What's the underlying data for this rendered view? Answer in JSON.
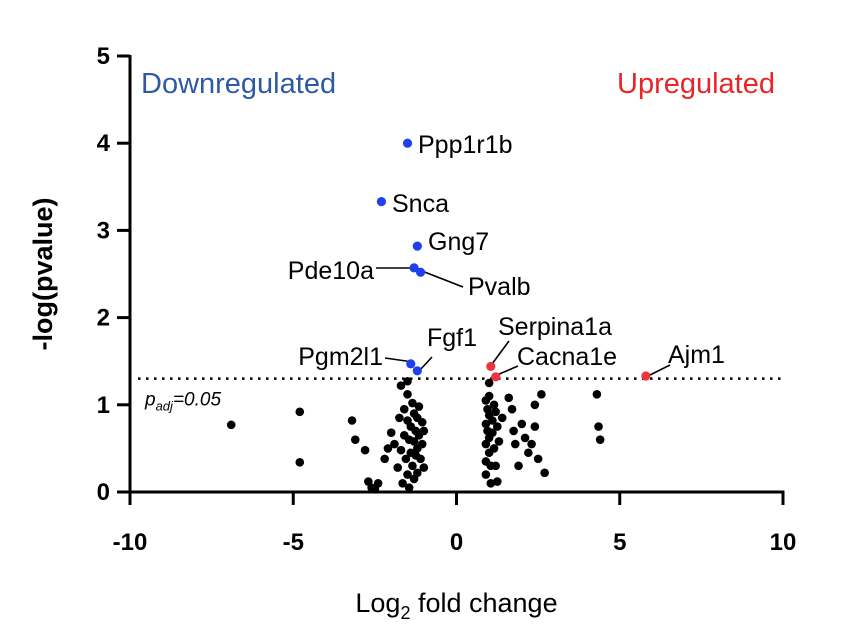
{
  "chart_data": {
    "type": "scatter",
    "title": "",
    "xlabel": "Log",
    "xlabel_sub": "2",
    "xlabel_rest": " fold change",
    "ylabel": "-log(pvalue)",
    "xlim": [
      -10,
      10
    ],
    "ylim": [
      0,
      5
    ],
    "xticks": [
      -10,
      -5,
      0,
      5,
      10
    ],
    "yticks": [
      0,
      1,
      2,
      3,
      4,
      5
    ],
    "grid": false,
    "threshold": {
      "y": 1.3,
      "label_p": "p",
      "label_sub": "adj",
      "label_rest": "=0.05"
    },
    "region_labels": {
      "down": {
        "text": "Downregulated",
        "color": "#2e5aa5"
      },
      "up": {
        "text": "Upregulated",
        "color": "#e8262a"
      }
    },
    "colors": {
      "down": "#1f3ff0",
      "up": "#ef3340",
      "ns": "#000000"
    },
    "highlighted": [
      {
        "gene": "Ppp1r1b",
        "x": -1.5,
        "y": 4.0,
        "group": "down"
      },
      {
        "gene": "Snca",
        "x": -2.3,
        "y": 3.33,
        "group": "down"
      },
      {
        "gene": "Gng7",
        "x": -1.2,
        "y": 2.82,
        "group": "down"
      },
      {
        "gene": "Pde10a",
        "x": -1.3,
        "y": 2.57,
        "group": "down"
      },
      {
        "gene": "Pvalb",
        "x": -1.1,
        "y": 2.52,
        "group": "down"
      },
      {
        "gene": "Pgm2l1",
        "x": -1.4,
        "y": 1.47,
        "group": "down"
      },
      {
        "gene": "Fgf1",
        "x": -1.2,
        "y": 1.39,
        "group": "down"
      },
      {
        "gene": "Serpina1a",
        "x": 1.05,
        "y": 1.44,
        "group": "up"
      },
      {
        "gene": "Cacna1e",
        "x": 1.2,
        "y": 1.32,
        "group": "up"
      },
      {
        "gene": "Ajm1",
        "x": 5.8,
        "y": 1.33,
        "group": "up"
      }
    ],
    "background_points": [
      [
        -6.9,
        0.77
      ],
      [
        -4.8,
        0.92
      ],
      [
        -4.8,
        0.34
      ],
      [
        -3.2,
        0.82
      ],
      [
        -3.1,
        0.6
      ],
      [
        -2.8,
        0.48
      ],
      [
        -2.7,
        0.12
      ],
      [
        -2.6,
        0.05
      ],
      [
        -2.5,
        0.03
      ],
      [
        -2.4,
        0.1
      ],
      [
        -2.2,
        0.38
      ],
      [
        -2.1,
        0.5
      ],
      [
        -2.0,
        0.68
      ],
      [
        -1.9,
        0.55
      ],
      [
        -1.8,
        0.28
      ],
      [
        -1.75,
        0.85
      ],
      [
        -1.7,
        1.22
      ],
      [
        -1.7,
        0.48
      ],
      [
        -1.65,
        0.1
      ],
      [
        -1.6,
        0.95
      ],
      [
        -1.6,
        0.65
      ],
      [
        -1.55,
        0.38
      ],
      [
        -1.5,
        1.27
      ],
      [
        -1.5,
        1.12
      ],
      [
        -1.5,
        0.82
      ],
      [
        -1.5,
        0.2
      ],
      [
        -1.45,
        0.6
      ],
      [
        -1.45,
        0.05
      ],
      [
        -1.4,
        0.75
      ],
      [
        -1.4,
        0.45
      ],
      [
        -1.35,
        1.02
      ],
      [
        -1.35,
        0.3
      ],
      [
        -1.3,
        0.9
      ],
      [
        -1.3,
        0.58
      ],
      [
        -1.3,
        0.15
      ],
      [
        -1.25,
        0.7
      ],
      [
        -1.25,
        0.42
      ],
      [
        -1.2,
        0.85
      ],
      [
        -1.2,
        0.5
      ],
      [
        -1.2,
        0.22
      ],
      [
        -1.15,
        0.98
      ],
      [
        -1.15,
        0.65
      ],
      [
        -1.1,
        0.38
      ],
      [
        -1.05,
        0.8
      ],
      [
        -1.05,
        0.55
      ],
      [
        -1.0,
        0.7
      ],
      [
        -1.0,
        0.28
      ],
      [
        0.9,
        1.05
      ],
      [
        0.9,
        0.78
      ],
      [
        0.9,
        0.55
      ],
      [
        0.9,
        0.35
      ],
      [
        0.9,
        0.2
      ],
      [
        0.95,
        0.95
      ],
      [
        0.95,
        0.7
      ],
      [
        1.0,
        1.25
      ],
      [
        1.0,
        1.1
      ],
      [
        1.0,
        0.88
      ],
      [
        1.0,
        0.62
      ],
      [
        1.0,
        0.45
      ],
      [
        1.05,
        0.3
      ],
      [
        1.05,
        0.1
      ],
      [
        1.1,
        0.82
      ],
      [
        1.1,
        0.68
      ],
      [
        1.15,
        1.0
      ],
      [
        1.15,
        0.5
      ],
      [
        1.2,
        0.92
      ],
      [
        1.2,
        0.3
      ],
      [
        1.25,
        0.75
      ],
      [
        1.25,
        0.12
      ],
      [
        1.3,
        0.58
      ],
      [
        1.4,
        0.85
      ],
      [
        1.6,
        1.08
      ],
      [
        1.7,
        0.95
      ],
      [
        1.75,
        0.7
      ],
      [
        1.8,
        0.55
      ],
      [
        1.9,
        0.3
      ],
      [
        2.0,
        0.78
      ],
      [
        2.1,
        0.62
      ],
      [
        2.2,
        0.45
      ],
      [
        2.3,
        0.55
      ],
      [
        2.4,
        1.0
      ],
      [
        2.4,
        0.75
      ],
      [
        2.5,
        0.38
      ],
      [
        2.6,
        1.12
      ],
      [
        2.7,
        0.22
      ],
      [
        4.3,
        1.12
      ],
      [
        4.35,
        0.75
      ],
      [
        4.4,
        0.6
      ]
    ]
  }
}
